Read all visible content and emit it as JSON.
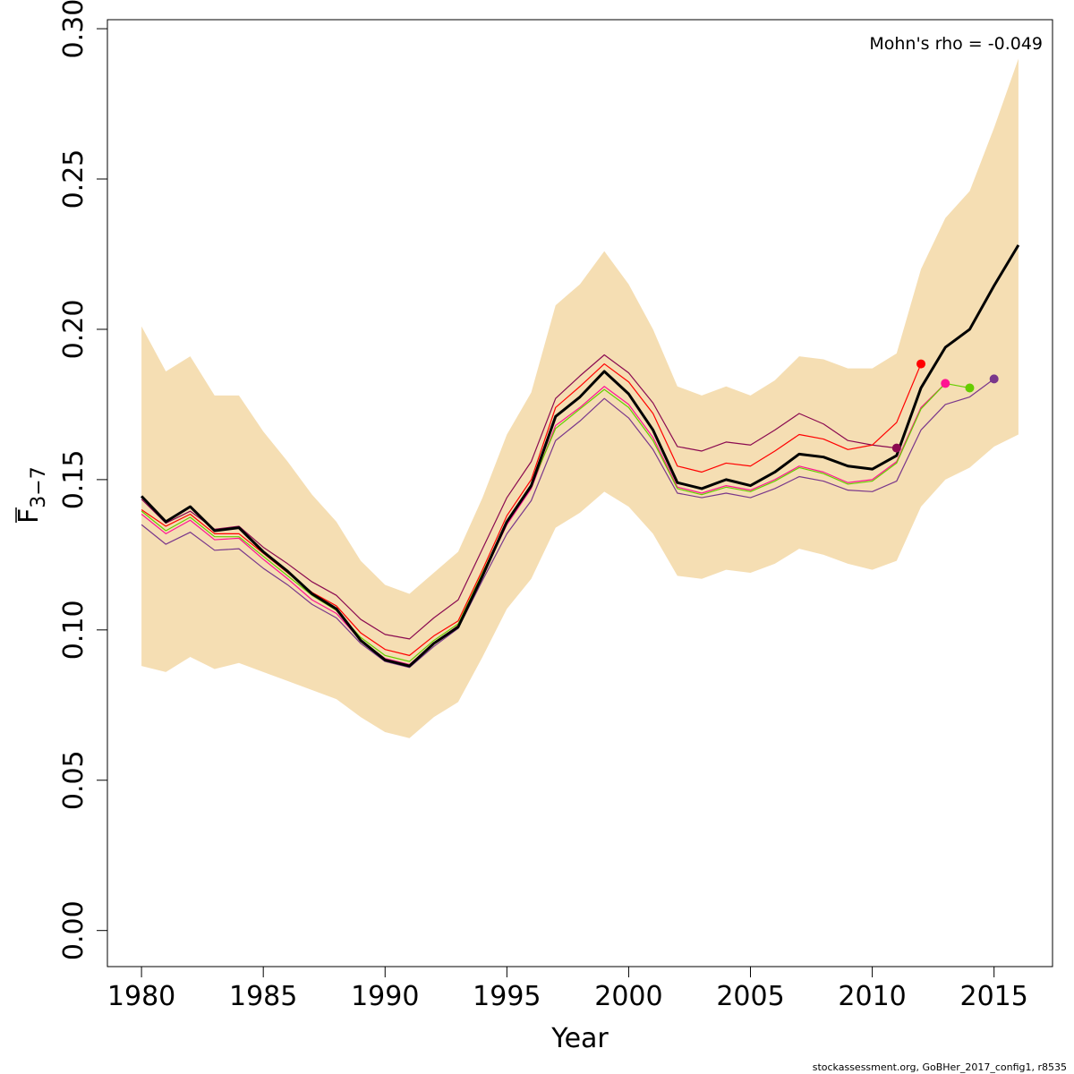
{
  "chart_data": {
    "type": "line",
    "xlabel": "Year",
    "ylabel_main": "F",
    "ylabel_sub": "3−7",
    "xlim": [
      1978.6,
      2017.4
    ],
    "ylim": [
      -0.012,
      0.303
    ],
    "x_ticks": [
      1980,
      1985,
      1990,
      1995,
      2000,
      2005,
      2010,
      2015
    ],
    "y_ticks": [
      0.0,
      0.05,
      0.1,
      0.15,
      0.2,
      0.25,
      0.3
    ],
    "y_tick_labels": [
      "0.00",
      "0.05",
      "0.10",
      "0.15",
      "0.20",
      "0.25",
      "0.30"
    ],
    "annotation": "Mohn's rho = -0.049",
    "footer": "stockassessment.org, GoBHer_2017_config1, r8535",
    "band": {
      "color": "#f5deb3",
      "x": [
        1980,
        1981,
        1982,
        1983,
        1984,
        1985,
        1986,
        1987,
        1988,
        1989,
        1990,
        1991,
        1992,
        1993,
        1994,
        1995,
        1996,
        1997,
        1998,
        1999,
        2000,
        2001,
        2002,
        2003,
        2004,
        2005,
        2006,
        2007,
        2008,
        2009,
        2010,
        2011,
        2012,
        2013,
        2014,
        2015,
        2016
      ],
      "upper": [
        0.201,
        0.186,
        0.191,
        0.178,
        0.178,
        0.166,
        0.156,
        0.145,
        0.136,
        0.123,
        0.115,
        0.112,
        0.119,
        0.126,
        0.144,
        0.165,
        0.179,
        0.208,
        0.215,
        0.226,
        0.215,
        0.2,
        0.181,
        0.178,
        0.181,
        0.178,
        0.183,
        0.191,
        0.19,
        0.187,
        0.187,
        0.192,
        0.22,
        0.237,
        0.246,
        0.267,
        0.29
      ],
      "lower": [
        0.088,
        0.086,
        0.091,
        0.087,
        0.089,
        0.086,
        0.083,
        0.08,
        0.077,
        0.071,
        0.066,
        0.064,
        0.071,
        0.076,
        0.091,
        0.107,
        0.117,
        0.134,
        0.139,
        0.146,
        0.141,
        0.132,
        0.118,
        0.117,
        0.12,
        0.119,
        0.122,
        0.127,
        0.125,
        0.122,
        0.12,
        0.123,
        0.141,
        0.15,
        0.154,
        0.161,
        0.165
      ]
    },
    "series": [
      {
        "color": "#000000",
        "width": 3,
        "x": [
          1980,
          1981,
          1982,
          1983,
          1984,
          1985,
          1986,
          1987,
          1988,
          1989,
          1990,
          1991,
          1992,
          1993,
          1994,
          1995,
          1996,
          1997,
          1998,
          1999,
          2000,
          2001,
          2002,
          2003,
          2004,
          2005,
          2006,
          2007,
          2008,
          2009,
          2010,
          2011,
          2012,
          2013,
          2014,
          2015,
          2016
        ],
        "values": [
          0.1445,
          0.136,
          0.141,
          0.133,
          0.134,
          0.126,
          0.1195,
          0.112,
          0.107,
          0.0965,
          0.09,
          0.088,
          0.0955,
          0.101,
          0.118,
          0.136,
          0.148,
          0.171,
          0.1775,
          0.186,
          0.1785,
          0.1665,
          0.149,
          0.147,
          0.15,
          0.148,
          0.1525,
          0.1585,
          0.1575,
          0.1545,
          0.1535,
          0.158,
          0.1805,
          0.194,
          0.2,
          0.2145,
          0.228
        ],
        "endpoint": false
      },
      {
        "color": "#8b0a50",
        "width": 1.2,
        "x": [
          1980,
          1981,
          1982,
          1983,
          1984,
          1985,
          1986,
          1987,
          1988,
          1989,
          1990,
          1991,
          1992,
          1993,
          1994,
          1995,
          1996,
          1997,
          1998,
          1999,
          2000,
          2001,
          2002,
          2003,
          2004,
          2005,
          2006,
          2007,
          2008,
          2009,
          2010,
          2011
        ],
        "values": [
          0.1435,
          0.1355,
          0.1395,
          0.1335,
          0.1345,
          0.1275,
          0.122,
          0.116,
          0.1115,
          0.1035,
          0.0985,
          0.097,
          0.104,
          0.11,
          0.127,
          0.144,
          0.156,
          0.177,
          0.1845,
          0.1915,
          0.1855,
          0.1755,
          0.161,
          0.1595,
          0.1625,
          0.1615,
          0.1665,
          0.172,
          0.1685,
          0.163,
          0.1615,
          0.1605
        ],
        "endpoint": true
      },
      {
        "color": "#ff0000",
        "width": 1.2,
        "x": [
          1980,
          1981,
          1982,
          1983,
          1984,
          1985,
          1986,
          1987,
          1988,
          1989,
          1990,
          1991,
          1992,
          1993,
          1994,
          1995,
          1996,
          1997,
          1998,
          1999,
          2000,
          2001,
          2002,
          2003,
          2004,
          2005,
          2006,
          2007,
          2008,
          2009,
          2010,
          2011,
          2012
        ],
        "values": [
          0.14,
          0.1345,
          0.1385,
          0.132,
          0.132,
          0.1255,
          0.119,
          0.1125,
          0.108,
          0.099,
          0.0935,
          0.0915,
          0.098,
          0.103,
          0.12,
          0.138,
          0.15,
          0.174,
          0.181,
          0.1885,
          0.1825,
          0.172,
          0.1545,
          0.1525,
          0.1555,
          0.1545,
          0.1595,
          0.165,
          0.1635,
          0.16,
          0.1615,
          0.169,
          0.1885
        ],
        "endpoint": true
      },
      {
        "color": "#ff1493",
        "width": 1.2,
        "x": [
          1980,
          1981,
          1982,
          1983,
          1984,
          1985,
          1986,
          1987,
          1988,
          1989,
          1990,
          1991,
          1992,
          1993,
          1994,
          1995,
          1996,
          1997,
          1998,
          1999,
          2000,
          2001,
          2002,
          2003,
          2004,
          2005,
          2006,
          2007,
          2008,
          2009,
          2010,
          2011,
          2012,
          2013
        ],
        "values": [
          0.1385,
          0.132,
          0.1365,
          0.13,
          0.1305,
          0.1235,
          0.117,
          0.11,
          0.1055,
          0.0965,
          0.0905,
          0.0885,
          0.0955,
          0.1015,
          0.118,
          0.135,
          0.147,
          0.168,
          0.174,
          0.181,
          0.175,
          0.164,
          0.1475,
          0.1455,
          0.148,
          0.1465,
          0.15,
          0.1545,
          0.1525,
          0.149,
          0.15,
          0.156,
          0.174,
          0.182
        ],
        "endpoint": true
      },
      {
        "color": "#66cd00",
        "width": 1.2,
        "x": [
          1980,
          1981,
          1982,
          1983,
          1984,
          1985,
          1986,
          1987,
          1988,
          1989,
          1990,
          1991,
          1992,
          1993,
          1994,
          1995,
          1996,
          1997,
          1998,
          1999,
          2000,
          2001,
          2002,
          2003,
          2004,
          2005,
          2006,
          2007,
          2008,
          2009,
          2010,
          2011,
          2012,
          2013,
          2014
        ],
        "values": [
          0.1395,
          0.133,
          0.1375,
          0.131,
          0.131,
          0.1245,
          0.118,
          0.1115,
          0.1065,
          0.0975,
          0.0915,
          0.0895,
          0.0965,
          0.102,
          0.119,
          0.136,
          0.148,
          0.167,
          0.1735,
          0.18,
          0.174,
          0.163,
          0.147,
          0.145,
          0.1475,
          0.146,
          0.1495,
          0.154,
          0.152,
          0.1485,
          0.1495,
          0.1555,
          0.1735,
          0.182,
          0.1805
        ],
        "endpoint": true
      },
      {
        "color": "#7a378b",
        "width": 1.2,
        "x": [
          1980,
          1981,
          1982,
          1983,
          1984,
          1985,
          1986,
          1987,
          1988,
          1989,
          1990,
          1991,
          1992,
          1993,
          1994,
          1995,
          1996,
          1997,
          1998,
          1999,
          2000,
          2001,
          2002,
          2003,
          2004,
          2005,
          2006,
          2007,
          2008,
          2009,
          2010,
          2011,
          2012,
          2013,
          2014,
          2015
        ],
        "values": [
          0.135,
          0.1285,
          0.1325,
          0.1265,
          0.127,
          0.1205,
          0.115,
          0.1085,
          0.104,
          0.0955,
          0.0895,
          0.0875,
          0.0945,
          0.1005,
          0.1165,
          0.132,
          0.143,
          0.163,
          0.1695,
          0.177,
          0.1705,
          0.16,
          0.1455,
          0.144,
          0.1455,
          0.144,
          0.147,
          0.151,
          0.1495,
          0.1465,
          0.146,
          0.1495,
          0.1665,
          0.175,
          0.1775,
          0.1835
        ],
        "endpoint": true
      }
    ]
  }
}
